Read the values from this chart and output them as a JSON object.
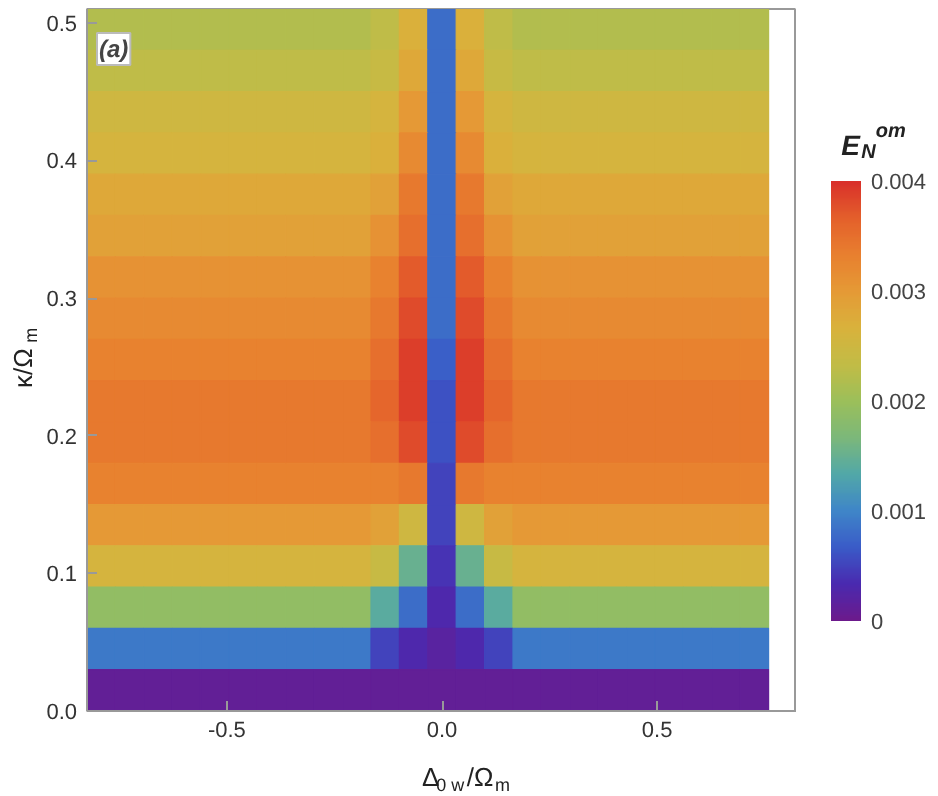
{
  "chart_data": {
    "type": "heatmap",
    "xlabel": "Δ$_{0 w}$/Ω$_{m}$",
    "ylabel": "κ/Ω$_{m}$",
    "clabel": "E$_{N}$$^{om}$",
    "annotations": [
      "(a)"
    ],
    "xlim": [
      -0.825,
      0.825
    ],
    "xticks": [
      -0.5,
      {
        "value": 0,
        "label": "0.0"
      },
      0.5
    ],
    "ylim": [
      0,
      0.51
    ],
    "yticks": [
      {
        "value": 0,
        "label": "0.0"
      },
      0.1,
      0.2,
      0.3,
      0.4,
      0.5
    ],
    "clim": [
      0,
      0.004
    ],
    "cticks": [
      0,
      0.001,
      0.002,
      0.003,
      0.004
    ],
    "x": [
      -0.792,
      -0.726,
      -0.66,
      -0.594,
      -0.528,
      -0.462,
      -0.396,
      -0.33,
      -0.264,
      -0.198,
      -0.132,
      -0.066,
      0.0,
      0.066,
      0.132,
      0.198,
      0.264,
      0.33,
      0.396,
      0.462,
      0.528,
      0.594,
      0.66,
      0.726,
      0.792
    ],
    "y": [
      0.495,
      0.465,
      0.435,
      0.405,
      0.375,
      0.345,
      0.315,
      0.285,
      0.255,
      0.225,
      0.195,
      0.165,
      0.135,
      0.105,
      0.075,
      0.045,
      0.015
    ],
    "cells": [
      [
        0.0022,
        0.0022,
        0.0022,
        0.0022,
        0.0022,
        0.0022,
        0.0022,
        0.0022,
        0.0022,
        0.0022,
        0.0023,
        0.0027,
        0.0008,
        0.0027,
        0.0023,
        0.0022,
        0.0022,
        0.0022,
        0.0022,
        0.0022,
        0.0022,
        0.0022,
        0.0022,
        0.0022,
        null
      ],
      [
        0.0023,
        0.0023,
        0.0023,
        0.0023,
        0.0023,
        0.0023,
        0.0023,
        0.0023,
        0.0023,
        0.0023,
        0.0024,
        0.0028,
        0.0008,
        0.0028,
        0.0024,
        0.0023,
        0.0023,
        0.0023,
        0.0023,
        0.0023,
        0.0023,
        0.0023,
        0.0023,
        0.0023,
        null
      ],
      [
        0.0025,
        0.0025,
        0.0025,
        0.0025,
        0.0025,
        0.0025,
        0.0025,
        0.0025,
        0.0025,
        0.0025,
        0.0026,
        0.003,
        0.0008,
        0.003,
        0.0026,
        0.0025,
        0.0025,
        0.0025,
        0.0025,
        0.0025,
        0.0025,
        0.0025,
        0.0025,
        0.0025,
        null
      ],
      [
        0.0026,
        0.0026,
        0.0026,
        0.0026,
        0.0026,
        0.0026,
        0.0026,
        0.0026,
        0.0026,
        0.0026,
        0.0027,
        0.0032,
        0.0008,
        0.0032,
        0.0027,
        0.0026,
        0.0026,
        0.0026,
        0.0026,
        0.0026,
        0.0026,
        0.0026,
        0.0026,
        0.0026,
        null
      ],
      [
        0.0028,
        0.0028,
        0.0028,
        0.0028,
        0.0028,
        0.0028,
        0.0028,
        0.0028,
        0.0028,
        0.0028,
        0.0029,
        0.0034,
        0.0008,
        0.0034,
        0.0029,
        0.0028,
        0.0028,
        0.0028,
        0.0028,
        0.0028,
        0.0028,
        0.0028,
        0.0028,
        0.0028,
        null
      ],
      [
        0.0029,
        0.0029,
        0.0029,
        0.0029,
        0.0029,
        0.0029,
        0.0029,
        0.0029,
        0.0029,
        0.0029,
        0.0031,
        0.0035,
        0.0008,
        0.0035,
        0.0031,
        0.0029,
        0.0029,
        0.0029,
        0.0029,
        0.0029,
        0.0029,
        0.0029,
        0.0029,
        0.0029,
        null
      ],
      [
        0.0031,
        0.0031,
        0.0031,
        0.0031,
        0.0031,
        0.0031,
        0.0031,
        0.0031,
        0.0031,
        0.0031,
        0.0033,
        0.0037,
        0.0008,
        0.0037,
        0.0033,
        0.0031,
        0.0031,
        0.0031,
        0.0031,
        0.0031,
        0.0031,
        0.0031,
        0.0031,
        0.0031,
        null
      ],
      [
        0.0032,
        0.0032,
        0.0032,
        0.0032,
        0.0032,
        0.0032,
        0.0032,
        0.0032,
        0.0032,
        0.0032,
        0.0034,
        0.0038,
        0.0008,
        0.0038,
        0.0034,
        0.0032,
        0.0032,
        0.0032,
        0.0032,
        0.0032,
        0.0032,
        0.0032,
        0.0032,
        0.0032,
        null
      ],
      [
        0.0033,
        0.0033,
        0.0033,
        0.0033,
        0.0033,
        0.0033,
        0.0033,
        0.0033,
        0.0033,
        0.0033,
        0.0035,
        0.0039,
        0.0007,
        0.0039,
        0.0035,
        0.0033,
        0.0033,
        0.0033,
        0.0033,
        0.0033,
        0.0033,
        0.0033,
        0.0033,
        0.0033,
        null
      ],
      [
        0.0034,
        0.0034,
        0.0034,
        0.0034,
        0.0034,
        0.0034,
        0.0034,
        0.0034,
        0.0034,
        0.0034,
        0.0036,
        0.0039,
        0.0006,
        0.0039,
        0.0036,
        0.0034,
        0.0034,
        0.0034,
        0.0034,
        0.0034,
        0.0034,
        0.0034,
        0.0034,
        0.0034,
        null
      ],
      [
        0.0034,
        0.0034,
        0.0034,
        0.0034,
        0.0034,
        0.0034,
        0.0034,
        0.0034,
        0.0034,
        0.0034,
        0.0035,
        0.0038,
        0.0006,
        0.0038,
        0.0035,
        0.0034,
        0.0034,
        0.0034,
        0.0034,
        0.0034,
        0.0034,
        0.0034,
        0.0034,
        0.0034,
        null
      ],
      [
        0.0033,
        0.0033,
        0.0033,
        0.0033,
        0.0033,
        0.0033,
        0.0033,
        0.0033,
        0.0033,
        0.0033,
        0.0033,
        0.0034,
        0.0005,
        0.0034,
        0.0033,
        0.0033,
        0.0033,
        0.0033,
        0.0033,
        0.0033,
        0.0033,
        0.0033,
        0.0033,
        0.0033,
        null
      ],
      [
        0.003,
        0.003,
        0.003,
        0.003,
        0.003,
        0.003,
        0.003,
        0.003,
        0.003,
        0.003,
        0.0029,
        0.0025,
        0.0005,
        0.0025,
        0.0029,
        0.003,
        0.003,
        0.003,
        0.003,
        0.003,
        0.003,
        0.003,
        0.003,
        0.003,
        null
      ],
      [
        0.0026,
        0.0026,
        0.0026,
        0.0026,
        0.0026,
        0.0026,
        0.0026,
        0.0026,
        0.0026,
        0.0026,
        0.0024,
        0.0015,
        0.0004,
        0.0015,
        0.0024,
        0.0026,
        0.0026,
        0.0026,
        0.0026,
        0.0026,
        0.0026,
        0.0026,
        0.0026,
        0.0026,
        null
      ],
      [
        0.0019,
        0.0019,
        0.0019,
        0.0019,
        0.0019,
        0.0019,
        0.0019,
        0.0019,
        0.0019,
        0.0019,
        0.0014,
        0.0008,
        0.0003,
        0.0008,
        0.0014,
        0.0019,
        0.0019,
        0.0019,
        0.0019,
        0.0019,
        0.0019,
        0.0019,
        0.0019,
        0.0019,
        null
      ],
      [
        0.0009,
        0.0009,
        0.0009,
        0.0009,
        0.0009,
        0.0009,
        0.0009,
        0.0009,
        0.0009,
        0.0009,
        0.0005,
        0.0003,
        0.0002,
        0.0003,
        0.0005,
        0.0009,
        0.0009,
        0.0009,
        0.0009,
        0.0009,
        0.0009,
        0.0009,
        0.0009,
        0.0009,
        null
      ],
      [
        0.0001,
        0.0001,
        0.0001,
        0.0001,
        0.0001,
        0.0001,
        0.0001,
        0.0001,
        0.0001,
        0.0001,
        0.0001,
        0.0001,
        0.0001,
        0.0001,
        0.0001,
        0.0001,
        0.0001,
        0.0001,
        0.0001,
        0.0001,
        0.0001,
        0.0001,
        0.0001,
        0.0001,
        null
      ]
    ]
  }
}
